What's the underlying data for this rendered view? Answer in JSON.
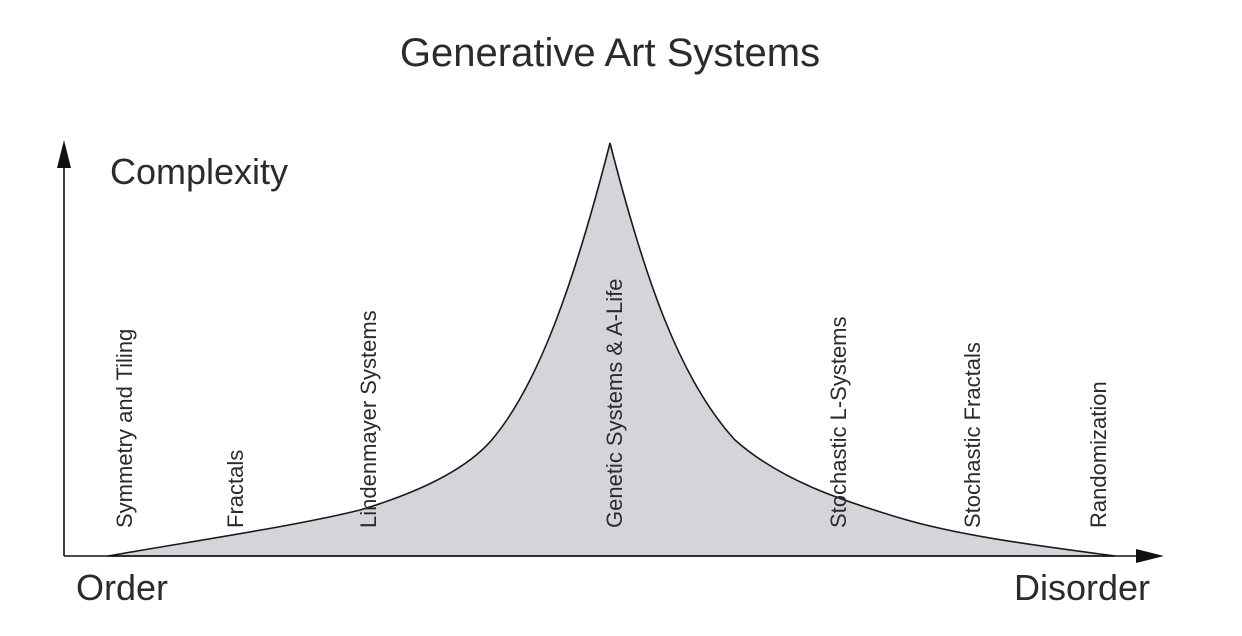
{
  "title": "Generative Art Systems",
  "axes": {
    "y_label": "Complexity",
    "x_left_label": "Order",
    "x_right_label": "Disorder"
  },
  "systems": [
    {
      "label": "Symmetry and Tiling"
    },
    {
      "label": "Fractals"
    },
    {
      "label": "Lindenmayer Systems"
    },
    {
      "label": "Genetic Systems & A-Life"
    },
    {
      "label": "Stochastic L-Systems"
    },
    {
      "label": "Stochastic Fractals"
    },
    {
      "label": "Randomization"
    }
  ],
  "colors": {
    "curve_fill": "#d4d5da",
    "curve_stroke": "#1a1a1a",
    "axis": "#111111",
    "text": "#2b2b2b"
  }
}
